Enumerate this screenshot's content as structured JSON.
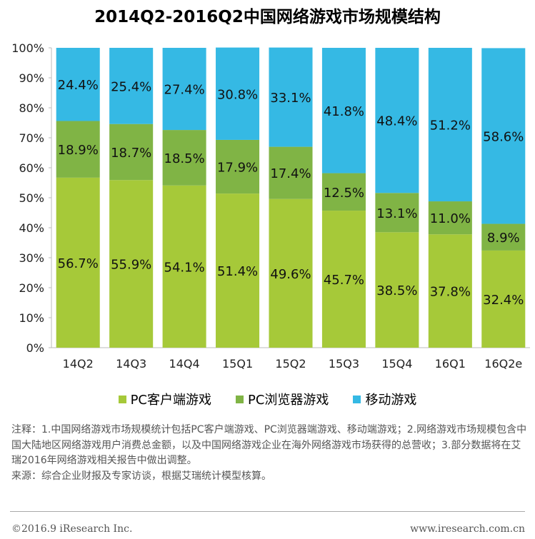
{
  "title": "2014Q2-2016Q2中国网络游戏市场规模结构",
  "chart_data": {
    "type": "bar",
    "stacked": true,
    "percent": true,
    "categories": [
      "14Q2",
      "14Q3",
      "14Q4",
      "15Q1",
      "15Q2",
      "15Q3",
      "15Q4",
      "16Q1",
      "16Q2e"
    ],
    "series": [
      {
        "name": "PC客户端游戏",
        "color": "#a6c939",
        "values": [
          56.7,
          55.9,
          54.1,
          51.4,
          49.6,
          45.7,
          38.5,
          37.8,
          32.4
        ],
        "labels": [
          "56.7%",
          "55.9%",
          "54.1%",
          "51.4%",
          "49.6%",
          "45.7%",
          "38.5%",
          "37.8%",
          "32.4%"
        ]
      },
      {
        "name": "PC浏览器游戏",
        "color": "#80b445",
        "values": [
          18.9,
          18.7,
          18.5,
          17.9,
          17.4,
          12.5,
          13.1,
          11.0,
          8.9
        ],
        "labels": [
          "18.9%",
          "18.7%",
          "18.5%",
          "17.9%",
          "17.4%",
          "12.5%",
          "13.1%",
          "11.0%",
          "8.9%"
        ]
      },
      {
        "name": "移动游戏",
        "color": "#35b9e4",
        "values": [
          24.4,
          25.4,
          27.4,
          30.8,
          33.1,
          41.8,
          48.4,
          51.2,
          58.6
        ],
        "labels": [
          "24.4%",
          "25.4%",
          "27.4%",
          "30.8%",
          "33.1%",
          "41.8%",
          "48.4%",
          "51.2%",
          "58.6%"
        ]
      }
    ],
    "ylim": [
      0,
      100
    ],
    "yticks": [
      "0%",
      "10%",
      "20%",
      "30%",
      "40%",
      "50%",
      "60%",
      "70%",
      "80%",
      "90%",
      "100%"
    ],
    "legend": "bottom"
  },
  "notes": [
    "注释：1.中国网络游戏市场规模统计包括PC客户端游戏、PC浏览器端游戏、移动端游戏；2.网络游戏市场规模包含中国大陆地区网络游戏用户消费总金额，以及中国网络游戏企业在海外网络游戏市场获得的总营收；3.部分数据将在艾瑞2016年网络游戏相关报告中做出调整。",
    "来源：综合企业财报及专家访谈，根据艾瑞统计模型核算。"
  ],
  "footer": {
    "copyright": "©2016.9 iResearch Inc.",
    "website": "www.iresearch.com.cn"
  }
}
